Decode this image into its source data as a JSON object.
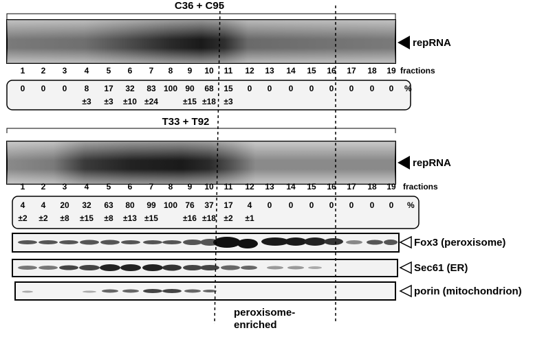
{
  "panels": [
    {
      "title": "C36 + C95",
      "band_label": "repRNA",
      "fractions": [
        "1",
        "2",
        "3",
        "4",
        "5",
        "6",
        "7",
        "8",
        "9",
        "10",
        "11",
        "12",
        "13",
        "14",
        "15",
        "16",
        "17",
        "18",
        "19"
      ],
      "fractions_label": "fractions",
      "percent": [
        {
          "mean": "0"
        },
        {
          "mean": "0"
        },
        {
          "mean": "0"
        },
        {
          "mean": "8",
          "sd": "±3"
        },
        {
          "mean": "17",
          "sd": "±3"
        },
        {
          "mean": "32",
          "sd": "±10"
        },
        {
          "mean": "83",
          "sd": "±24"
        },
        {
          "mean": "100"
        },
        {
          "mean": "90",
          "sd": "±15"
        },
        {
          "mean": "68",
          "sd": "±18"
        },
        {
          "mean": "15",
          "sd": "±3"
        },
        {
          "mean": "0"
        },
        {
          "mean": "0"
        },
        {
          "mean": "0"
        },
        {
          "mean": "0"
        },
        {
          "mean": "0"
        },
        {
          "mean": "0"
        },
        {
          "mean": "0"
        },
        {
          "mean": "0"
        }
      ],
      "unit": "%"
    },
    {
      "title": "T33 + T92",
      "band_label": "repRNA",
      "fractions": [
        "1",
        "2",
        "3",
        "4",
        "5",
        "6",
        "7",
        "8",
        "9",
        "10",
        "11",
        "12",
        "13",
        "14",
        "15",
        "16",
        "17",
        "18",
        "19"
      ],
      "fractions_label": "fractions",
      "percent": [
        {
          "mean": "4",
          "sd": "±2"
        },
        {
          "mean": "4",
          "sd": "±2"
        },
        {
          "mean": "20",
          "sd": "±8"
        },
        {
          "mean": "32",
          "sd": "±15"
        },
        {
          "mean": "63",
          "sd": "±8"
        },
        {
          "mean": "80",
          "sd": "±13"
        },
        {
          "mean": "99",
          "sd": "±15"
        },
        {
          "mean": "100"
        },
        {
          "mean": "76",
          "sd": "±16"
        },
        {
          "mean": "37",
          "sd": "±18"
        },
        {
          "mean": "17",
          "sd": "±2"
        },
        {
          "mean": "4",
          "sd": "±1"
        },
        {
          "mean": "0"
        },
        {
          "mean": "0"
        },
        {
          "mean": "0"
        },
        {
          "mean": "0"
        },
        {
          "mean": "0"
        },
        {
          "mean": "0"
        },
        {
          "mean": "0"
        }
      ],
      "unit": "%"
    }
  ],
  "blots": [
    {
      "label": "Fox3 (peroxisome)"
    },
    {
      "label": "Sec61 (ER)"
    },
    {
      "label": "porin (mitochondrion)"
    }
  ],
  "annotation": [
    "peroxisome-",
    "enriched"
  ]
}
